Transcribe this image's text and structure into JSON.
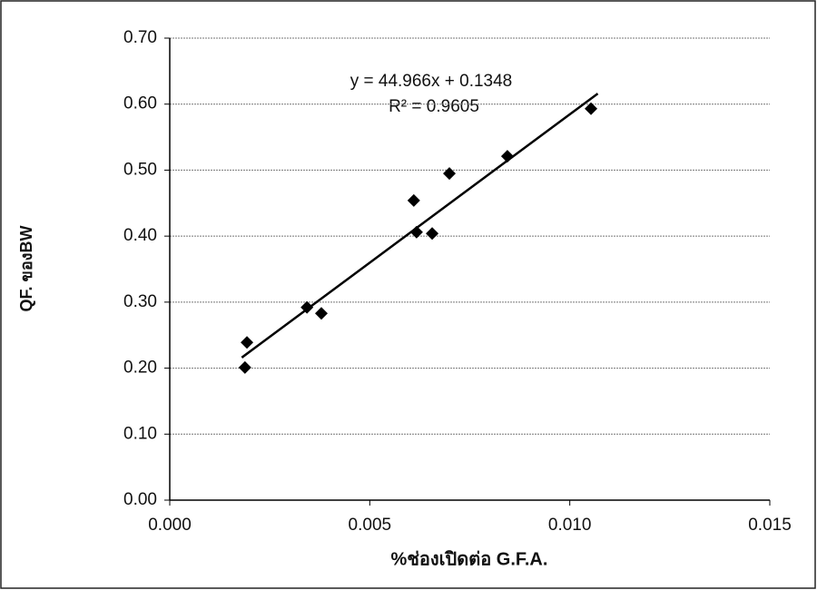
{
  "chart_data": {
    "type": "scatter",
    "x_label": "%ช่องเปิดต่อ G.F.A.",
    "y_label": "QF. ของBW",
    "annotations": [
      "y = 44.966x + 0.1348",
      "R² = 0.9605"
    ],
    "x": [
      0.00188,
      0.00193,
      0.00343,
      0.00379,
      0.0061,
      0.00617,
      0.00656,
      0.00699,
      0.00844,
      0.01053
    ],
    "values": [
      0.201,
      0.239,
      0.292,
      0.283,
      0.454,
      0.406,
      0.404,
      0.495,
      0.521,
      0.593
    ],
    "color": "#000000",
    "trendline": {
      "x": [
        0.0018,
        0.0107
      ],
      "values": [
        0.216,
        0.616
      ],
      "color": "#000000"
    },
    "xlim": [
      0,
      0.015
    ],
    "xticks": [
      {
        "value": 0,
        "label": "0.000"
      },
      {
        "value": 0.005,
        "label": "0.005"
      },
      {
        "value": 0.01,
        "label": "0.010"
      },
      {
        "value": 0.015,
        "label": "0.015"
      }
    ],
    "ylim": [
      0,
      0.7
    ],
    "yticks": [
      {
        "value": 0,
        "label": "0.00"
      },
      {
        "value": 0.1,
        "label": "0.10"
      },
      {
        "value": 0.2,
        "label": "0.20"
      },
      {
        "value": 0.3,
        "label": "0.30"
      },
      {
        "value": 0.4,
        "label": "0.40"
      },
      {
        "value": 0.5,
        "label": "0.50"
      },
      {
        "value": 0.6,
        "label": "0.60"
      },
      {
        "value": 0.7,
        "label": "0.70"
      }
    ],
    "grid": true
  }
}
